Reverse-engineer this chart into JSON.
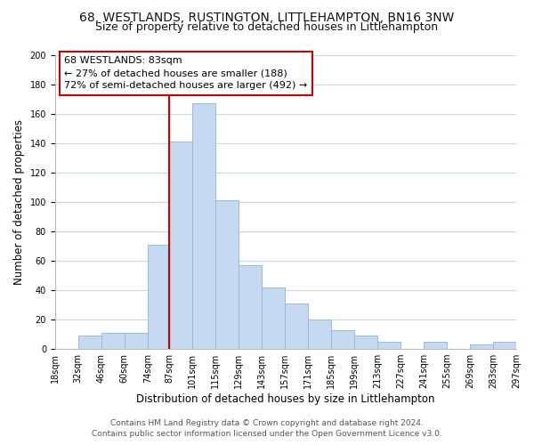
{
  "title": "68, WESTLANDS, RUSTINGTON, LITTLEHAMPTON, BN16 3NW",
  "subtitle": "Size of property relative to detached houses in Littlehampton",
  "xlabel": "Distribution of detached houses by size in Littlehampton",
  "ylabel": "Number of detached properties",
  "footer_line1": "Contains HM Land Registry data © Crown copyright and database right 2024.",
  "footer_line2": "Contains public sector information licensed under the Open Government Licence v3.0.",
  "bins": [
    18,
    32,
    46,
    60,
    74,
    87,
    101,
    115,
    129,
    143,
    157,
    171,
    185,
    199,
    213,
    227,
    241,
    255,
    269,
    283,
    297
  ],
  "bin_labels": [
    "18sqm",
    "32sqm",
    "46sqm",
    "60sqm",
    "74sqm",
    "87sqm",
    "101sqm",
    "115sqm",
    "129sqm",
    "143sqm",
    "157sqm",
    "171sqm",
    "185sqm",
    "199sqm",
    "213sqm",
    "227sqm",
    "241sqm",
    "255sqm",
    "269sqm",
    "283sqm",
    "297sqm"
  ],
  "counts": [
    0,
    9,
    11,
    11,
    71,
    141,
    167,
    101,
    57,
    42,
    31,
    20,
    13,
    9,
    5,
    0,
    5,
    0,
    3,
    5,
    0
  ],
  "bar_color": "#c5d9f1",
  "bar_edge_color": "#a0b8d8",
  "vline_x": 87,
  "vline_color": "#cc0000",
  "ann_line1": "68 WESTLANDS: 83sqm",
  "ann_line2": "← 27% of detached houses are smaller (188)",
  "ann_line3": "72% of semi-detached houses are larger (492) →",
  "ylim": [
    0,
    200
  ],
  "yticks": [
    0,
    20,
    40,
    60,
    80,
    100,
    120,
    140,
    160,
    180,
    200
  ],
  "bg_color": "#ffffff",
  "grid_color": "#c8d8ea",
  "title_fontsize": 10,
  "subtitle_fontsize": 9,
  "axis_label_fontsize": 8.5,
  "tick_fontsize": 7,
  "annotation_fontsize": 8,
  "footer_fontsize": 6.5
}
